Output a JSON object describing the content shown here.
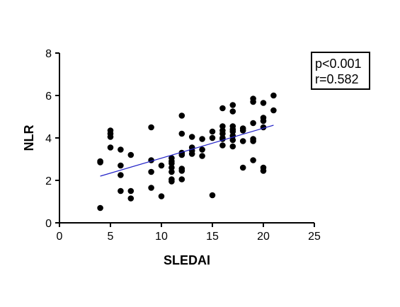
{
  "chart_data": {
    "type": "scatter",
    "xlabel": "SLEDAI",
    "ylabel": "NLR",
    "xlim": [
      0,
      25
    ],
    "ylim": [
      0,
      8
    ],
    "xticks": [
      0,
      5,
      10,
      15,
      20,
      25
    ],
    "yticks": [
      0,
      2,
      4,
      6,
      8
    ],
    "grid": false,
    "annotation": {
      "lines": [
        "p<0.001",
        "r=0.582"
      ],
      "placement": "top-right"
    },
    "regression_line": {
      "x": [
        4,
        21
      ],
      "y": [
        2.2,
        4.6
      ],
      "color": "#2323c8"
    },
    "point_color": "#000000",
    "points": [
      [
        4,
        0.7
      ],
      [
        4,
        2.85
      ],
      [
        4,
        2.9
      ],
      [
        5,
        4.35
      ],
      [
        5,
        4.2
      ],
      [
        5,
        4.05
      ],
      [
        5,
        3.55
      ],
      [
        6,
        3.45
      ],
      [
        6,
        2.7
      ],
      [
        6,
        2.25
      ],
      [
        6,
        1.5
      ],
      [
        7,
        3.2
      ],
      [
        7,
        1.5
      ],
      [
        7,
        1.15
      ],
      [
        9,
        4.5
      ],
      [
        9,
        2.95
      ],
      [
        9,
        2.4
      ],
      [
        9,
        1.65
      ],
      [
        10,
        2.7
      ],
      [
        10,
        1.25
      ],
      [
        11,
        3.05
      ],
      [
        11,
        2.9
      ],
      [
        11,
        2.8
      ],
      [
        11,
        2.6
      ],
      [
        11,
        2.4
      ],
      [
        11,
        2.05
      ],
      [
        11,
        1.95
      ],
      [
        12,
        5.05
      ],
      [
        12,
        4.2
      ],
      [
        12,
        3.3
      ],
      [
        12,
        3.2
      ],
      [
        12,
        2.55
      ],
      [
        12,
        2.45
      ],
      [
        12,
        2.05
      ],
      [
        13,
        4.05
      ],
      [
        13,
        3.55
      ],
      [
        13,
        3.4
      ],
      [
        13,
        3.25
      ],
      [
        14,
        3.95
      ],
      [
        14,
        3.45
      ],
      [
        14,
        3.15
      ],
      [
        15,
        4.3
      ],
      [
        15,
        4.0
      ],
      [
        15,
        1.3
      ],
      [
        16,
        5.4
      ],
      [
        16,
        4.55
      ],
      [
        16,
        4.35
      ],
      [
        16,
        4.2
      ],
      [
        16,
        4.0
      ],
      [
        16,
        3.95
      ],
      [
        16,
        3.65
      ],
      [
        17,
        5.55
      ],
      [
        17,
        5.25
      ],
      [
        17,
        4.55
      ],
      [
        17,
        4.4
      ],
      [
        17,
        4.3
      ],
      [
        17,
        4.1
      ],
      [
        17,
        3.9
      ],
      [
        17,
        3.6
      ],
      [
        18,
        4.45
      ],
      [
        18,
        4.35
      ],
      [
        18,
        3.85
      ],
      [
        18,
        2.6
      ],
      [
        19,
        5.85
      ],
      [
        19,
        5.7
      ],
      [
        19,
        4.7
      ],
      [
        19,
        3.95
      ],
      [
        19,
        3.85
      ],
      [
        19,
        2.95
      ],
      [
        20,
        5.65
      ],
      [
        20,
        4.95
      ],
      [
        20,
        4.8
      ],
      [
        20,
        4.5
      ],
      [
        20,
        2.6
      ],
      [
        20,
        2.45
      ],
      [
        21,
        6.0
      ],
      [
        21,
        5.3
      ]
    ]
  }
}
